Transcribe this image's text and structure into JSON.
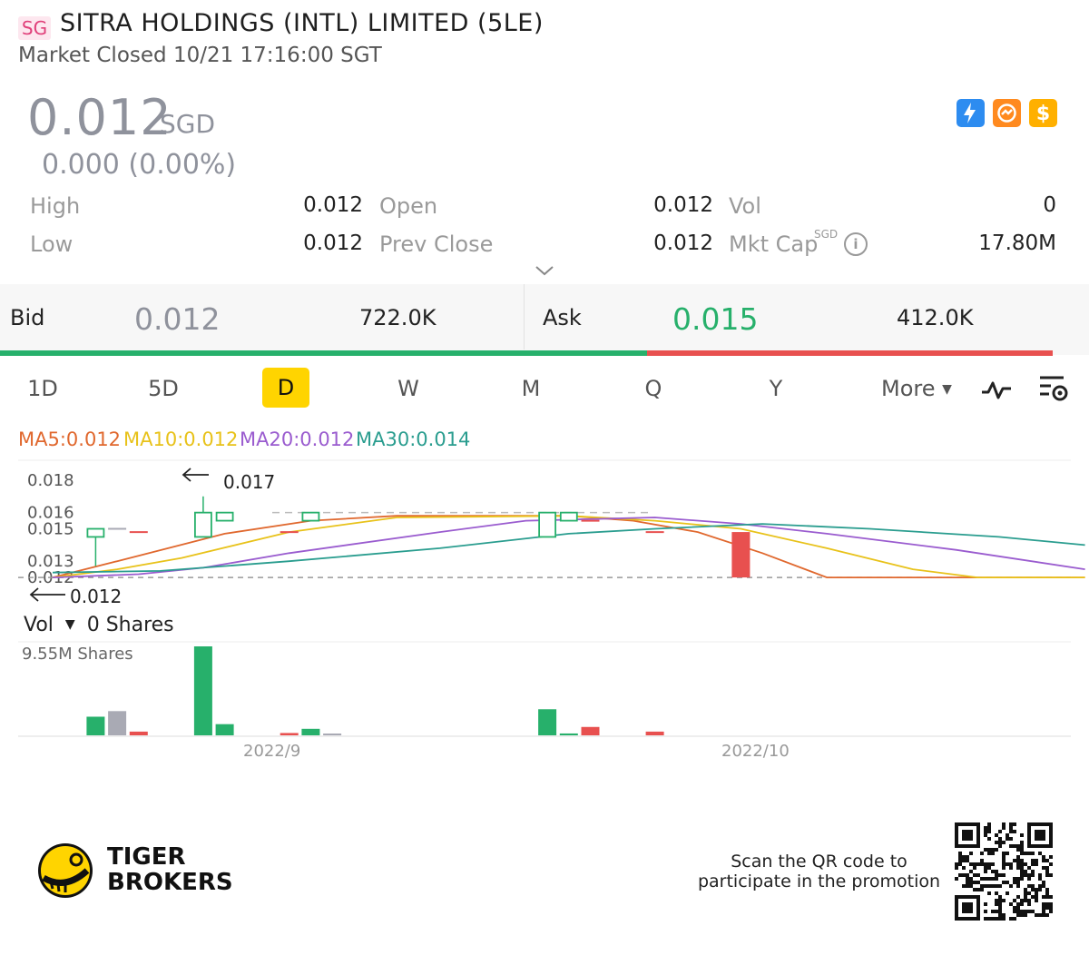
{
  "header": {
    "market": "SG",
    "title": "SITRA HOLDINGS (INTL) LIMITED (5LE)",
    "status": "Market Closed 10/21 17:16:00 SGT"
  },
  "quote": {
    "price": "0.012",
    "currency": "SGD",
    "change": "0.000 (0.00%)",
    "icons": [
      "flash-icon",
      "swap-icon",
      "dollar-icon"
    ]
  },
  "stats": {
    "high_label": "High",
    "high": "0.012",
    "open_label": "Open",
    "open": "0.012",
    "vol_label": "Vol",
    "vol": "0",
    "low_label": "Low",
    "low": "0.012",
    "prev_close_label": "Prev Close",
    "prev_close": "0.012",
    "mkt_cap_label": "Mkt Cap",
    "mkt_cap_currency": "SGD",
    "mkt_cap": "17.80M"
  },
  "bidask": {
    "bid_label": "Bid",
    "bid": "0.012",
    "bid_size": "722.0K",
    "ask_label": "Ask",
    "ask": "0.015",
    "ask_size": "412.0K",
    "bid_share": 0.615
  },
  "periods": [
    "1D",
    "5D",
    "D",
    "W",
    "M",
    "Q",
    "Y"
  ],
  "active_period": "D",
  "more_label": "More",
  "ma": {
    "ma5": "MA5:0.012",
    "ma10": "MA10:0.012",
    "ma20": "MA20:0.012",
    "ma30": "MA30:0.014",
    "ma5_color": "#e0682e",
    "ma10_color": "#e8c21a",
    "ma20_color": "#9a5ccf",
    "ma30_color": "#2a9d8f"
  },
  "chart_data": {
    "type": "candlestick",
    "y_ticks": [
      "0.018",
      "0.016",
      "0.015",
      "0.013",
      "0.012"
    ],
    "ylim": [
      0.0115,
      0.0185
    ],
    "high_marker": "0.017",
    "low_marker": "0.012",
    "x_labels": [
      "2022/9",
      "2022/10"
    ],
    "candles": [
      {
        "i": 2,
        "open": 0.0145,
        "close": 0.015,
        "high": 0.015,
        "low": 0.0127,
        "color": "green"
      },
      {
        "i": 3,
        "open": 0.015,
        "close": 0.015,
        "high": 0.015,
        "low": 0.015,
        "color": "gray"
      },
      {
        "i": 4,
        "open": 0.0148,
        "close": 0.0148,
        "high": 0.0148,
        "low": 0.0148,
        "color": "red"
      },
      {
        "i": 7,
        "open": 0.0145,
        "close": 0.016,
        "high": 0.017,
        "low": 0.0145,
        "color": "green"
      },
      {
        "i": 8,
        "open": 0.0155,
        "close": 0.016,
        "high": 0.016,
        "low": 0.0155,
        "color": "green"
      },
      {
        "i": 11,
        "open": 0.0148,
        "close": 0.0148,
        "high": 0.0148,
        "low": 0.0148,
        "color": "red"
      },
      {
        "i": 12,
        "open": 0.0155,
        "close": 0.016,
        "high": 0.016,
        "low": 0.0155,
        "color": "green"
      },
      {
        "i": 23,
        "open": 0.0145,
        "close": 0.016,
        "high": 0.016,
        "low": 0.0145,
        "color": "green"
      },
      {
        "i": 24,
        "open": 0.0155,
        "close": 0.016,
        "high": 0.016,
        "low": 0.0155,
        "color": "green"
      },
      {
        "i": 25,
        "open": 0.0155,
        "close": 0.0155,
        "high": 0.0155,
        "low": 0.0155,
        "color": "red"
      },
      {
        "i": 28,
        "open": 0.0148,
        "close": 0.0148,
        "high": 0.0148,
        "low": 0.0148,
        "color": "red"
      },
      {
        "i": 32,
        "open": 0.0148,
        "close": 0.012,
        "high": 0.0148,
        "low": 0.012,
        "color": "red"
      }
    ],
    "ma_series": [
      {
        "name": "MA5",
        "points": [
          [
            0,
            0.012
          ],
          [
            3,
            0.013
          ],
          [
            8,
            0.0147
          ],
          [
            12,
            0.0155
          ],
          [
            16,
            0.0158
          ],
          [
            24,
            0.0158
          ],
          [
            27,
            0.0155
          ],
          [
            30,
            0.0148
          ],
          [
            33,
            0.0135
          ],
          [
            36,
            0.012
          ],
          [
            48,
            0.012
          ]
        ]
      },
      {
        "name": "MA10",
        "points": [
          [
            0,
            0.012
          ],
          [
            3,
            0.0125
          ],
          [
            6,
            0.0132
          ],
          [
            11,
            0.0148
          ],
          [
            16,
            0.0157
          ],
          [
            24,
            0.0158
          ],
          [
            28,
            0.0155
          ],
          [
            32,
            0.015
          ],
          [
            36,
            0.0138
          ],
          [
            40,
            0.0125
          ],
          [
            43,
            0.012
          ],
          [
            48,
            0.012
          ]
        ]
      },
      {
        "name": "MA20",
        "points": [
          [
            0,
            0.012
          ],
          [
            4,
            0.0122
          ],
          [
            7,
            0.0126
          ],
          [
            11,
            0.0135
          ],
          [
            18,
            0.0148
          ],
          [
            22,
            0.0155
          ],
          [
            28,
            0.0157
          ],
          [
            32,
            0.0153
          ],
          [
            36,
            0.0147
          ],
          [
            42,
            0.0137
          ],
          [
            48,
            0.0125
          ]
        ]
      },
      {
        "name": "MA30",
        "points": [
          [
            0,
            0.0123
          ],
          [
            5,
            0.0124
          ],
          [
            11,
            0.013
          ],
          [
            18,
            0.0138
          ],
          [
            24,
            0.0147
          ],
          [
            28,
            0.015
          ],
          [
            33,
            0.0153
          ],
          [
            38,
            0.015
          ],
          [
            44,
            0.0145
          ],
          [
            48,
            0.014
          ]
        ]
      }
    ]
  },
  "volume": {
    "label": "Vol",
    "value": "0 Shares",
    "max_label": "9.55M Shares",
    "max": 9.55,
    "bars": [
      {
        "i": 2,
        "v": 2.0,
        "color": "green"
      },
      {
        "i": 3,
        "v": 2.6,
        "color": "gray"
      },
      {
        "i": 4,
        "v": 0.4,
        "color": "red"
      },
      {
        "i": 7,
        "v": 9.55,
        "color": "green"
      },
      {
        "i": 8,
        "v": 1.2,
        "color": "green"
      },
      {
        "i": 11,
        "v": 0.25,
        "color": "red"
      },
      {
        "i": 12,
        "v": 0.7,
        "color": "green"
      },
      {
        "i": 13,
        "v": 0.1,
        "color": "gray"
      },
      {
        "i": 23,
        "v": 2.8,
        "color": "green"
      },
      {
        "i": 24,
        "v": 0.2,
        "color": "green"
      },
      {
        "i": 25,
        "v": 0.9,
        "color": "red"
      },
      {
        "i": 28,
        "v": 0.4,
        "color": "red"
      }
    ]
  },
  "footer": {
    "brand_line1": "TIGER",
    "brand_line2": "BROKERS",
    "promo_line1": "Scan the QR code to",
    "promo_line2": "participate in the promotion"
  },
  "colors": {
    "green": "#27b06b",
    "red": "#e8504f",
    "gray": "#a9aab4",
    "accent": "#ffd400"
  }
}
